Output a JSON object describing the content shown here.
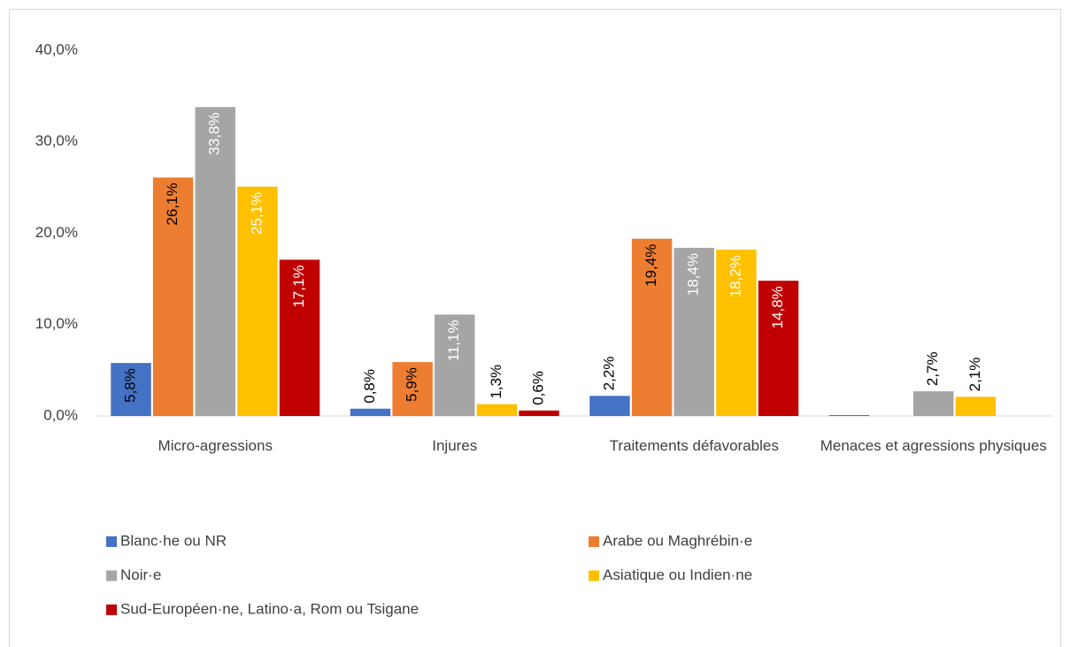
{
  "chart_data": {
    "type": "bar",
    "categories": [
      "Micro-agressions",
      "Injures",
      "Traitements défavorables",
      "Menaces et agressions physiques"
    ],
    "series": [
      {
        "name": "Blanc·he ou NR",
        "color": "#4472c4",
        "label_color": "#000000",
        "values": [
          5.8,
          0.8,
          2.2,
          0.1
        ],
        "value_labels": [
          "5,8%",
          "0,8%",
          "2,2%",
          null
        ]
      },
      {
        "name": "Arabe ou Maghrébin·e",
        "color": "#ed7d31",
        "label_color": "#000000",
        "values": [
          26.1,
          5.9,
          19.4,
          null
        ],
        "value_labels": [
          "26,1%",
          "5,9%",
          "19,4%",
          null
        ]
      },
      {
        "name": "Noir·e",
        "color": "#a5a5a5",
        "label_color": "#ffffff",
        "values": [
          33.8,
          11.1,
          18.4,
          2.7
        ],
        "value_labels": [
          "33,8%",
          "11,1%",
          "18,4%",
          "2,7%"
        ]
      },
      {
        "name": "Asiatique ou Indien·ne",
        "color": "#ffc000",
        "label_color": "#ffffff",
        "values": [
          25.1,
          1.3,
          18.2,
          2.1
        ],
        "value_labels": [
          "25,1%",
          "1,3%",
          "18,2%",
          "2,1%"
        ]
      },
      {
        "name": "Sud-Européen·ne, Latino·a, Rom ou Tsigane",
        "color": "#c00000",
        "label_color": "#ffffff",
        "values": [
          17.1,
          0.6,
          14.8,
          null
        ],
        "value_labels": [
          "17,1%",
          "0,6%",
          "14,8%",
          null
        ]
      }
    ],
    "ylim": [
      0,
      40
    ],
    "yticks": [
      {
        "value": 0,
        "label": "0,0%"
      },
      {
        "value": 10,
        "label": "10,0%"
      },
      {
        "value": 20,
        "label": "20,0%"
      },
      {
        "value": 30,
        "label": "30,0%"
      },
      {
        "value": 40,
        "label": "40,0%"
      }
    ],
    "grid": false,
    "legend": "bottom"
  }
}
